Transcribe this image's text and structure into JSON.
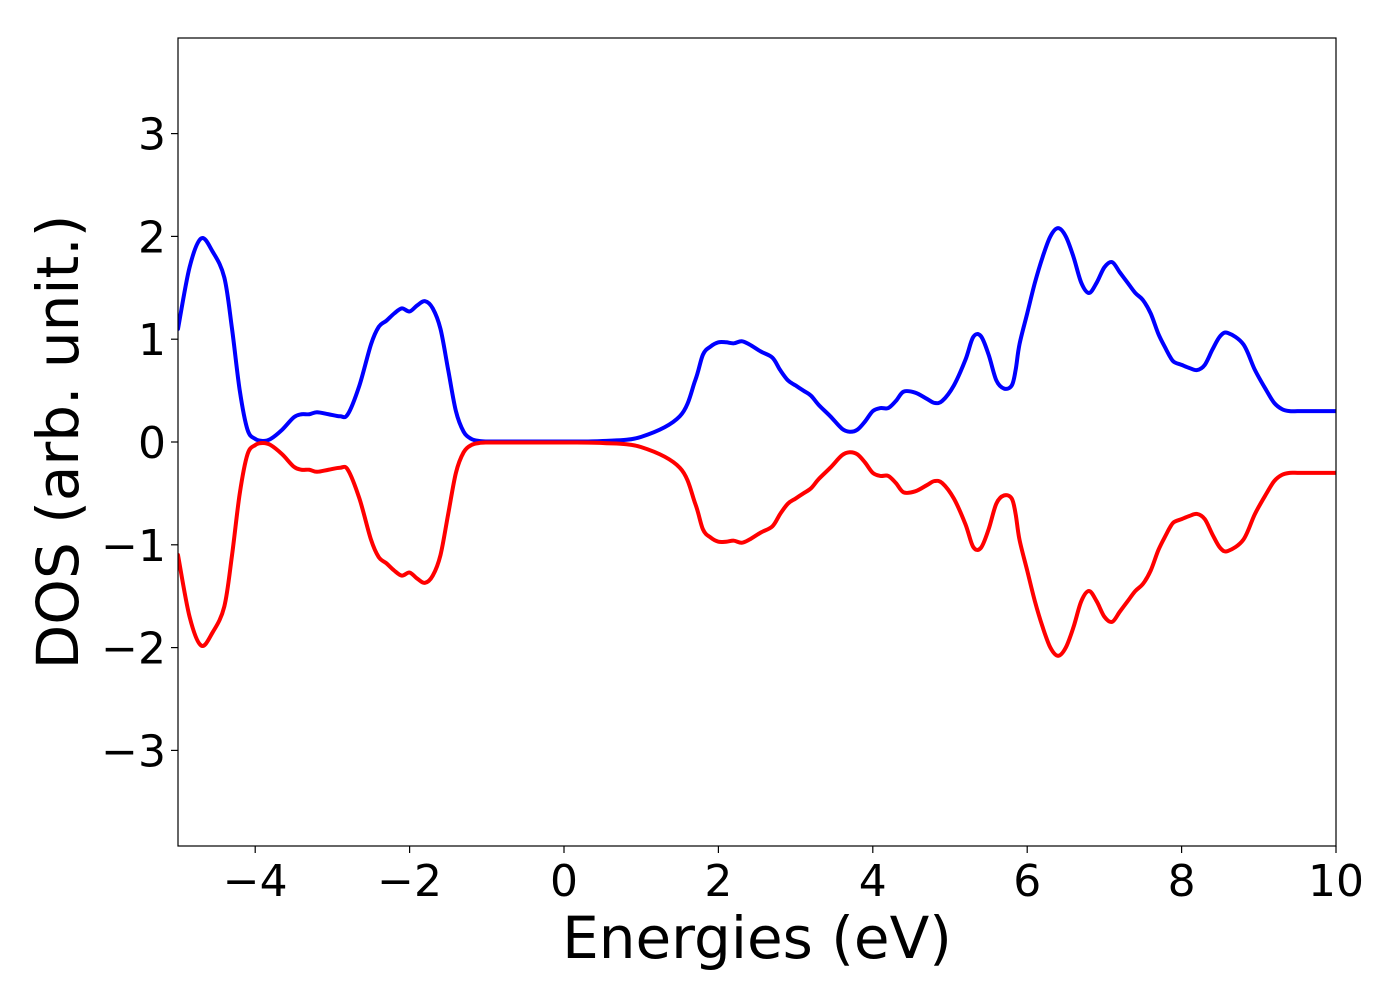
{
  "chart_data": {
    "type": "line",
    "title": "",
    "xlabel": "Energies (eV)",
    "ylabel": "DOS (arb. unit.)",
    "xlim": [
      -5,
      10
    ],
    "ylim": [
      -3.93,
      3.93
    ],
    "xticks": [
      -4,
      -2,
      0,
      2,
      4,
      6,
      8,
      10
    ],
    "xtick_labels": [
      "−4",
      "−2",
      "0",
      "2",
      "4",
      "6",
      "8",
      "10"
    ],
    "yticks": [
      -3,
      -2,
      -1,
      0,
      1,
      2,
      3
    ],
    "ytick_labels": [
      "−3",
      "−2",
      "−1",
      "0",
      "1",
      "2",
      "3"
    ],
    "grid": false,
    "legend": "none",
    "series": [
      {
        "color": "#0000ff",
        "x": [
          -5,
          -4.85,
          -4.7,
          -4.55,
          -4.4,
          -4.3,
          -4.2,
          -4.1,
          -4.0,
          -3.9,
          -3.8,
          -3.65,
          -3.5,
          -3.4,
          -3.3,
          -3.2,
          -3.05,
          -2.9,
          -2.8,
          -2.65,
          -2.5,
          -2.4,
          -2.3,
          -2.2,
          -2.1,
          -2.0,
          -1.9,
          -1.8,
          -1.7,
          -1.6,
          -1.5,
          -1.4,
          -1.3,
          -1.2,
          -1.1,
          -1.0,
          -0.9,
          -0.8,
          -0.7,
          -0.6,
          -0.5,
          -0.3,
          0.0,
          0.5,
          1.0,
          1.5,
          1.7,
          1.8,
          1.9,
          2.0,
          2.1,
          2.2,
          2.3,
          2.4,
          2.55,
          2.7,
          2.8,
          2.9,
          3.0,
          3.1,
          3.2,
          3.3,
          3.45,
          3.6,
          3.7,
          3.8,
          3.9,
          4.0,
          4.1,
          4.2,
          4.3,
          4.4,
          4.55,
          4.7,
          4.8,
          4.9,
          5.05,
          5.2,
          5.3,
          5.4,
          5.5,
          5.6,
          5.7,
          5.8,
          5.85,
          5.9,
          6.0,
          6.1,
          6.2,
          6.3,
          6.4,
          6.5,
          6.6,
          6.7,
          6.8,
          6.9,
          7.0,
          7.1,
          7.2,
          7.3,
          7.4,
          7.5,
          7.6,
          7.7,
          7.8,
          7.85,
          7.9,
          8.0,
          8.1,
          8.2,
          8.3,
          8.4,
          8.5,
          8.6,
          8.8,
          8.95,
          9.1,
          9.2,
          9.3,
          9.4,
          9.5,
          9.6,
          9.7,
          9.8,
          9.9,
          10
        ],
        "values": [
          1.1,
          1.7,
          1.98,
          1.85,
          1.6,
          1.1,
          0.5,
          0.12,
          0.03,
          0.01,
          0.03,
          0.12,
          0.24,
          0.27,
          0.27,
          0.29,
          0.27,
          0.25,
          0.27,
          0.55,
          0.95,
          1.12,
          1.18,
          1.25,
          1.3,
          1.27,
          1.33,
          1.37,
          1.3,
          1.1,
          0.7,
          0.3,
          0.1,
          0.03,
          0.01,
          0.005,
          0.005,
          0.005,
          0.005,
          0.005,
          0.005,
          0.005,
          0.005,
          0.01,
          0.05,
          0.25,
          0.6,
          0.85,
          0.93,
          0.97,
          0.97,
          0.96,
          0.98,
          0.95,
          0.88,
          0.82,
          0.7,
          0.6,
          0.55,
          0.5,
          0.45,
          0.36,
          0.25,
          0.13,
          0.1,
          0.12,
          0.2,
          0.3,
          0.33,
          0.33,
          0.4,
          0.49,
          0.48,
          0.42,
          0.38,
          0.4,
          0.55,
          0.8,
          1.02,
          1.03,
          0.85,
          0.6,
          0.52,
          0.55,
          0.7,
          0.95,
          1.25,
          1.55,
          1.8,
          2.0,
          2.08,
          2.0,
          1.8,
          1.55,
          1.45,
          1.55,
          1.7,
          1.75,
          1.65,
          1.55,
          1.45,
          1.38,
          1.25,
          1.05,
          0.9,
          0.83,
          0.78,
          0.75,
          0.72,
          0.7,
          0.75,
          0.9,
          1.03,
          1.06,
          0.95,
          0.7,
          0.5,
          0.38,
          0.32,
          0.3,
          0.3,
          0.3,
          0.3,
          0.3,
          0.3,
          0.3
        ]
      },
      {
        "color": "#ff0000",
        "x": [
          -5,
          -4.85,
          -4.7,
          -4.55,
          -4.4,
          -4.3,
          -4.2,
          -4.1,
          -4.0,
          -3.9,
          -3.8,
          -3.65,
          -3.5,
          -3.4,
          -3.3,
          -3.2,
          -3.05,
          -2.9,
          -2.8,
          -2.65,
          -2.5,
          -2.4,
          -2.3,
          -2.2,
          -2.1,
          -2.0,
          -1.9,
          -1.8,
          -1.7,
          -1.6,
          -1.5,
          -1.4,
          -1.3,
          -1.2,
          -1.1,
          -1.0,
          -0.9,
          -0.8,
          -0.7,
          -0.6,
          -0.5,
          -0.3,
          0.0,
          0.5,
          1.0,
          1.5,
          1.7,
          1.8,
          1.9,
          2.0,
          2.1,
          2.2,
          2.3,
          2.4,
          2.55,
          2.7,
          2.8,
          2.9,
          3.0,
          3.1,
          3.2,
          3.3,
          3.45,
          3.6,
          3.7,
          3.8,
          3.9,
          4.0,
          4.1,
          4.2,
          4.3,
          4.4,
          4.55,
          4.7,
          4.8,
          4.9,
          5.05,
          5.2,
          5.3,
          5.4,
          5.5,
          5.6,
          5.7,
          5.8,
          5.85,
          5.9,
          6.0,
          6.1,
          6.2,
          6.3,
          6.4,
          6.5,
          6.6,
          6.7,
          6.8,
          6.9,
          7.0,
          7.1,
          7.2,
          7.3,
          7.4,
          7.5,
          7.6,
          7.7,
          7.8,
          7.85,
          7.9,
          8.0,
          8.1,
          8.2,
          8.3,
          8.4,
          8.5,
          8.6,
          8.8,
          8.95,
          9.1,
          9.2,
          9.3,
          9.4,
          9.5,
          9.6,
          9.7,
          9.8,
          9.9,
          10
        ],
        "values": [
          -1.1,
          -1.7,
          -1.98,
          -1.85,
          -1.6,
          -1.1,
          -0.5,
          -0.12,
          -0.03,
          -0.01,
          -0.03,
          -0.12,
          -0.24,
          -0.27,
          -0.27,
          -0.29,
          -0.27,
          -0.25,
          -0.27,
          -0.55,
          -0.95,
          -1.12,
          -1.18,
          -1.25,
          -1.3,
          -1.27,
          -1.33,
          -1.37,
          -1.3,
          -1.1,
          -0.7,
          -0.3,
          -0.1,
          -0.03,
          -0.01,
          -0.005,
          -0.005,
          -0.005,
          -0.005,
          -0.005,
          -0.005,
          -0.005,
          -0.005,
          -0.01,
          -0.05,
          -0.25,
          -0.6,
          -0.85,
          -0.93,
          -0.97,
          -0.97,
          -0.96,
          -0.98,
          -0.95,
          -0.88,
          -0.82,
          -0.7,
          -0.6,
          -0.55,
          -0.5,
          -0.45,
          -0.36,
          -0.25,
          -0.13,
          -0.1,
          -0.12,
          -0.2,
          -0.3,
          -0.33,
          -0.33,
          -0.4,
          -0.49,
          -0.48,
          -0.42,
          -0.38,
          -0.4,
          -0.55,
          -0.8,
          -1.02,
          -1.03,
          -0.85,
          -0.6,
          -0.52,
          -0.55,
          -0.7,
          -0.95,
          -1.25,
          -1.55,
          -1.8,
          -2.0,
          -2.08,
          -2.0,
          -1.8,
          -1.55,
          -1.45,
          -1.55,
          -1.7,
          -1.75,
          -1.65,
          -1.55,
          -1.45,
          -1.38,
          -1.25,
          -1.05,
          -0.9,
          -0.83,
          -0.78,
          -0.75,
          -0.72,
          -0.7,
          -0.75,
          -0.9,
          -1.03,
          -1.06,
          -0.95,
          -0.7,
          -0.5,
          -0.38,
          -0.32,
          -0.3,
          -0.3,
          -0.3,
          -0.3,
          -0.3,
          -0.3,
          -0.3
        ]
      }
    ]
  }
}
